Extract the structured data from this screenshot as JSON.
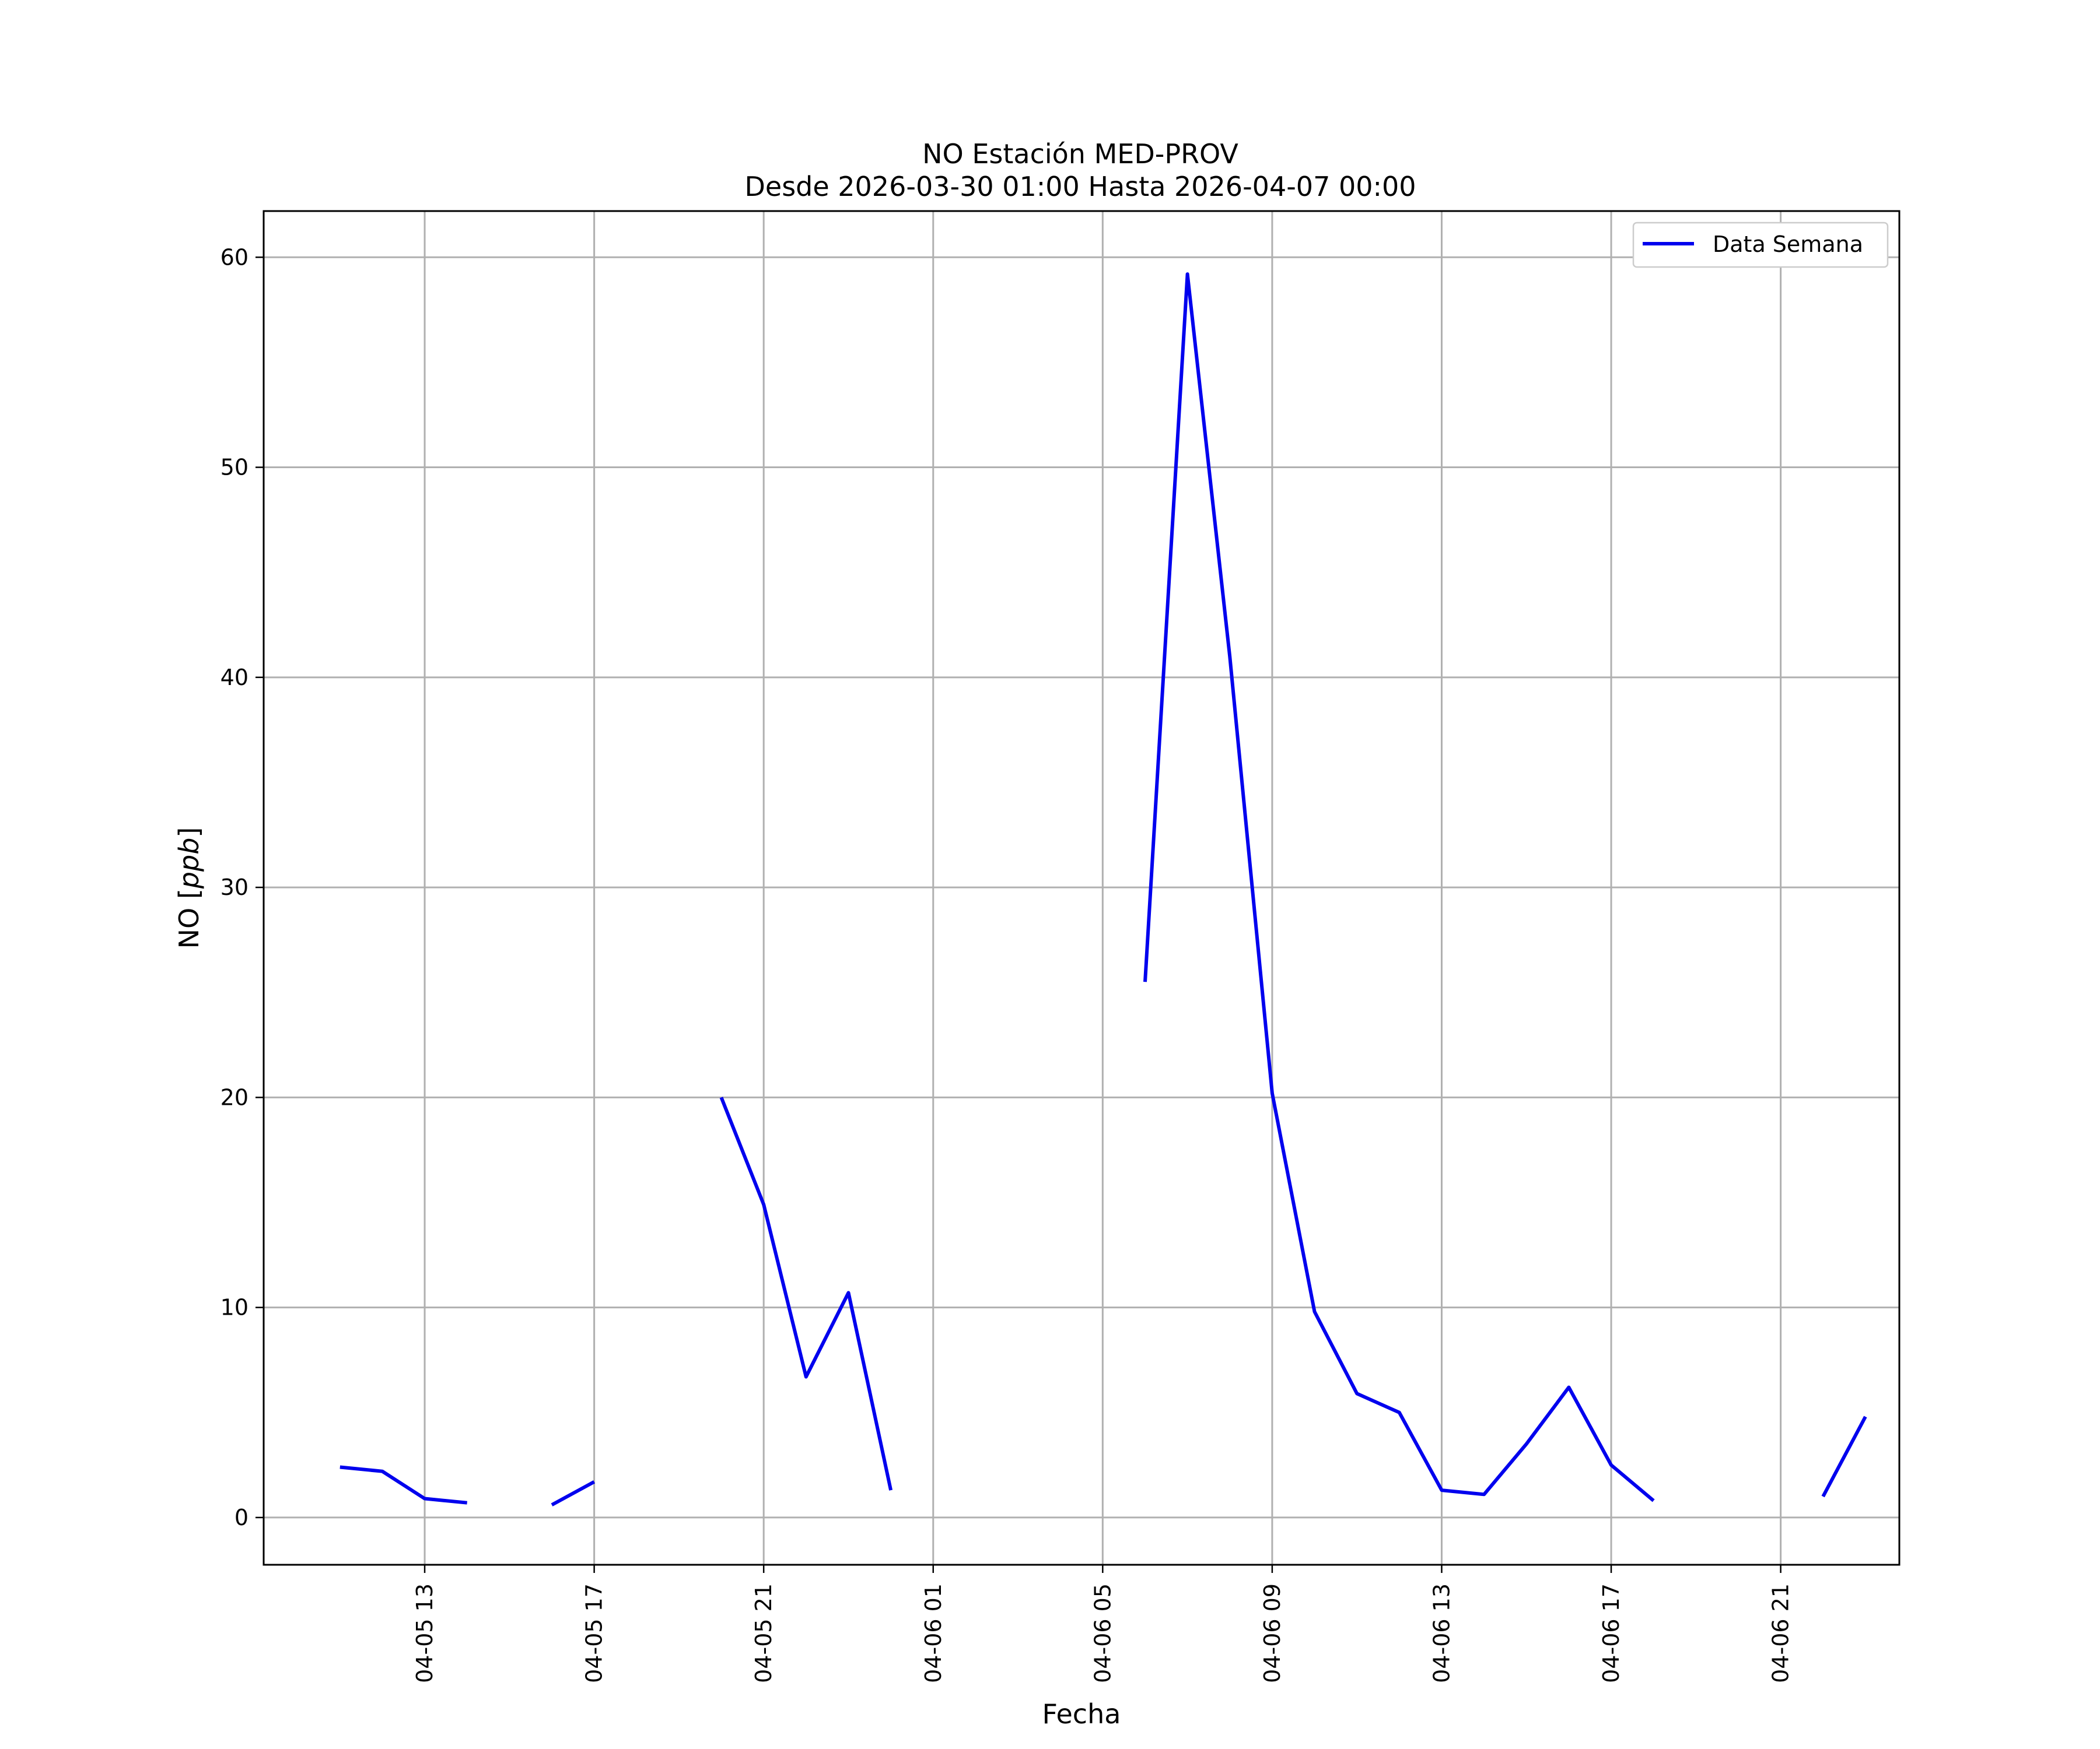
{
  "chart_data": {
    "type": "line",
    "title": "NO Estación MED-PROV",
    "subtitle": "Desde 2026-03-30 01:00 Hasta 2026-04-07 00:00",
    "xlabel": "Fecha",
    "ylabel": "NO [ppb]",
    "ylabel_main": "NO [",
    "ylabel_unit": "ppb",
    "ylabel_close": "]",
    "ylim": [
      -2.25,
      62.2
    ],
    "xlim": [
      "2026-04-05 09:12",
      "2026-04-06 23:48"
    ],
    "x_ticks": [
      "2026-04-05 13:00",
      "2026-04-05 17:00",
      "2026-04-05 21:00",
      "2026-04-06 01:00",
      "2026-04-06 05:00",
      "2026-04-06 09:00",
      "2026-04-06 13:00",
      "2026-04-06 17:00",
      "2026-04-06 21:00"
    ],
    "x_tick_labels": [
      "04-05 13",
      "04-05 17",
      "04-05 21",
      "04-06 01",
      "04-06 05",
      "04-06 09",
      "04-06 13",
      "04-06 17",
      "04-06 21"
    ],
    "y_ticks": [
      0,
      10,
      20,
      30,
      40,
      50,
      60
    ],
    "y_tick_labels": [
      "0",
      "10",
      "20",
      "30",
      "40",
      "50",
      "60"
    ],
    "grid": true,
    "legend_position": "top-right",
    "series": [
      {
        "name": "Data Semana",
        "color": "#0000ee",
        "points": [
          {
            "x": "2026-04-05 11:00",
            "y": 2.4
          },
          {
            "x": "2026-04-05 12:00",
            "y": 2.2
          },
          {
            "x": "2026-04-05 13:00",
            "y": 0.9
          },
          {
            "x": "2026-04-05 14:00",
            "y": 0.7
          },
          {
            "x": "2026-04-05 15:00",
            "y": null
          },
          {
            "x": "2026-04-05 16:00",
            "y": 0.6
          },
          {
            "x": "2026-04-05 17:00",
            "y": 1.7
          },
          {
            "x": "2026-04-05 18:00",
            "y": null
          },
          {
            "x": "2026-04-05 19:00",
            "y": null
          },
          {
            "x": "2026-04-05 20:00",
            "y": 20.0
          },
          {
            "x": "2026-04-05 21:00",
            "y": 14.9
          },
          {
            "x": "2026-04-05 22:00",
            "y": 6.7
          },
          {
            "x": "2026-04-05 23:00",
            "y": 10.7
          },
          {
            "x": "2026-04-06 00:00",
            "y": 1.3
          },
          {
            "x": "2026-04-06 01:00",
            "y": null
          },
          {
            "x": "2026-04-06 02:00",
            "y": null
          },
          {
            "x": "2026-04-06 03:00",
            "y": null
          },
          {
            "x": "2026-04-06 04:00",
            "y": null
          },
          {
            "x": "2026-04-06 05:00",
            "y": null
          },
          {
            "x": "2026-04-06 06:00",
            "y": 25.5
          },
          {
            "x": "2026-04-06 07:00",
            "y": 59.2
          },
          {
            "x": "2026-04-06 08:00",
            "y": 41.0
          },
          {
            "x": "2026-04-06 09:00",
            "y": 20.2
          },
          {
            "x": "2026-04-06 10:00",
            "y": 9.8
          },
          {
            "x": "2026-04-06 11:00",
            "y": 5.9
          },
          {
            "x": "2026-04-06 12:00",
            "y": 5.0
          },
          {
            "x": "2026-04-06 13:00",
            "y": 1.3
          },
          {
            "x": "2026-04-06 14:00",
            "y": 1.1
          },
          {
            "x": "2026-04-06 15:00",
            "y": 3.5
          },
          {
            "x": "2026-04-06 16:00",
            "y": 6.2
          },
          {
            "x": "2026-04-06 17:00",
            "y": 2.5
          },
          {
            "x": "2026-04-06 18:00",
            "y": 0.8
          },
          {
            "x": "2026-04-06 19:00",
            "y": null
          },
          {
            "x": "2026-04-06 20:00",
            "y": null
          },
          {
            "x": "2026-04-06 21:00",
            "y": null
          },
          {
            "x": "2026-04-06 22:00",
            "y": 1.0
          },
          {
            "x": "2026-04-06 23:00",
            "y": 4.8
          }
        ]
      }
    ]
  }
}
